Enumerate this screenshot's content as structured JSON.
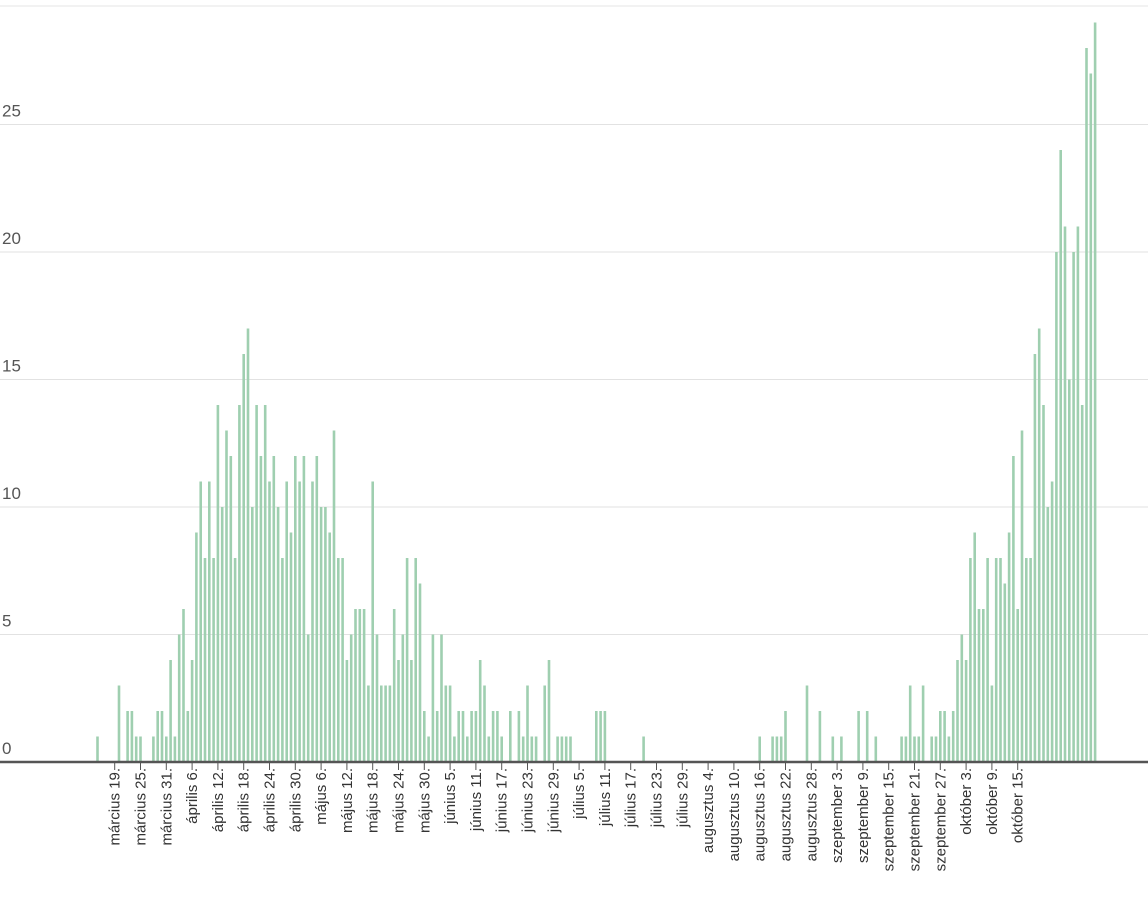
{
  "chart_data": {
    "type": "bar",
    "title": "",
    "xlabel": "",
    "ylabel": "",
    "ylim": [
      0,
      29.5
    ],
    "y_ticks": [
      0,
      5,
      10,
      15,
      20,
      25
    ],
    "grid": true,
    "bar_color": "#9fcfb0",
    "x_tick_labels": [
      "március 19.",
      "március 25.",
      "március 31.",
      "április 6.",
      "április 12.",
      "április 18.",
      "április 24.",
      "április 30.",
      "május 6.",
      "május 12.",
      "május 18.",
      "május 24.",
      "május 30.",
      "június 5.",
      "június 11.",
      "június 17.",
      "június 23.",
      "június 29.",
      "július 5.",
      "július 11.",
      "július 17.",
      "július 23.",
      "július 29.",
      "augusztus 4.",
      "augusztus 10.",
      "augusztus 16.",
      "augusztus 22.",
      "augusztus 28.",
      "szeptember 3.",
      "szeptember 9.",
      "szeptember 15.",
      "szeptember 21.",
      "szeptember 27.",
      "október 3.",
      "október 9.",
      "október 15."
    ],
    "first_tick_index": 4,
    "tick_every": 6,
    "values": [
      1,
      0,
      0,
      0,
      0,
      3,
      0,
      2,
      2,
      1,
      1,
      0,
      0,
      1,
      2,
      2,
      1,
      4,
      1,
      5,
      6,
      2,
      4,
      9,
      11,
      8,
      11,
      8,
      14,
      10,
      13,
      12,
      8,
      14,
      16,
      17,
      10,
      14,
      12,
      14,
      11,
      12,
      10,
      8,
      11,
      9,
      12,
      11,
      12,
      5,
      11,
      12,
      10,
      10,
      9,
      13,
      8,
      8,
      4,
      5,
      6,
      6,
      6,
      3,
      11,
      5,
      3,
      3,
      3,
      6,
      4,
      5,
      8,
      4,
      8,
      7,
      2,
      1,
      5,
      2,
      5,
      3,
      3,
      1,
      2,
      2,
      1,
      2,
      2,
      4,
      3,
      1,
      2,
      2,
      1,
      0,
      2,
      0,
      2,
      1,
      3,
      1,
      1,
      0,
      3,
      4,
      0,
      1,
      1,
      1,
      1,
      0,
      0,
      0,
      0,
      0,
      2,
      2,
      2,
      0,
      0,
      0,
      0,
      0,
      0,
      0,
      0,
      1,
      0,
      0,
      0,
      0,
      0,
      0,
      0,
      0,
      0,
      0,
      0,
      0,
      0,
      0,
      0,
      0,
      0,
      0,
      0,
      0,
      0,
      0,
      0,
      0,
      0,
      0,
      1,
      0,
      0,
      1,
      1,
      1,
      2,
      0,
      0,
      0,
      0,
      3,
      0,
      0,
      2,
      0,
      0,
      1,
      0,
      1,
      0,
      0,
      0,
      2,
      0,
      2,
      0,
      1,
      0,
      0,
      0,
      0,
      0,
      1,
      1,
      3,
      1,
      1,
      3,
      0,
      1,
      1,
      2,
      2,
      1,
      2,
      4,
      5,
      4,
      8,
      9,
      6,
      6,
      8,
      3,
      8,
      8,
      7,
      9,
      12,
      6,
      13,
      8,
      8,
      16,
      17,
      14,
      10,
      11,
      20,
      24,
      21,
      15,
      20,
      21,
      14,
      28,
      27,
      29
    ]
  }
}
